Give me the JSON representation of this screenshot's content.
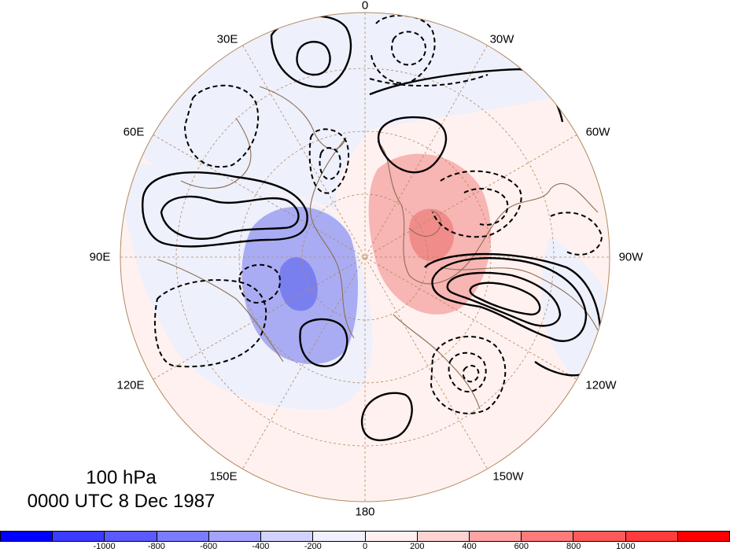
{
  "map": {
    "projection": "north-polar-stereographic",
    "longitude_labels": {
      "lon_0": "0",
      "lon_30w": "30W",
      "lon_60w": "60W",
      "lon_90w": "90W",
      "lon_120w": "120W",
      "lon_150w": "150W",
      "lon_180": "180",
      "lon_150e": "150E",
      "lon_120e": "120E",
      "lon_90e": "90E",
      "lon_60e": "60E",
      "lon_30e": "30E"
    },
    "colors": {
      "coastline": "#8b6e52",
      "graticule": "#b08a60",
      "contour": "#000000"
    }
  },
  "title": {
    "level": "100 hPa",
    "time": "0000 UTC 8 Dec 1987"
  },
  "colorbar": {
    "colors": [
      "#0000ff",
      "#3c3cff",
      "#5a5aff",
      "#7b7bff",
      "#a3a3ff",
      "#d2d2ff",
      "#f0f0ff",
      "#fff0f0",
      "#ffd2d2",
      "#ffa3a3",
      "#ff7b7b",
      "#ff5a5a",
      "#ff3c3c",
      "#ff0000"
    ],
    "tick_labels": [
      "-1000",
      "-800",
      "-600",
      "-400",
      "-200",
      "0",
      "200",
      "400",
      "600",
      "800",
      "1000"
    ]
  }
}
